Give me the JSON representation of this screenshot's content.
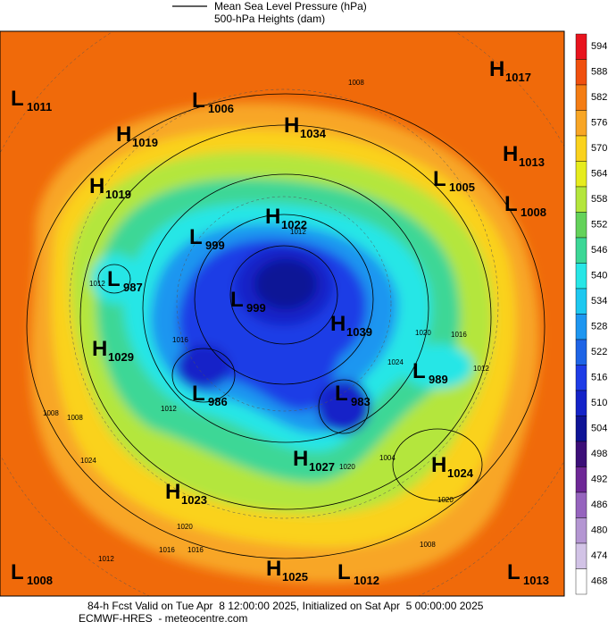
{
  "legend": {
    "line_label": "Mean Sea Level Pressure (hPa)",
    "fill_label": "500-hPa Heights (dam)"
  },
  "colorbar": {
    "ticks": [
      594,
      588,
      582,
      576,
      570,
      564,
      558,
      552,
      546,
      540,
      534,
      528,
      522,
      516,
      510,
      504,
      498,
      492,
      486,
      480,
      474,
      468
    ],
    "colors": [
      "#e8141e",
      "#f0500f",
      "#f47d14",
      "#f8a626",
      "#fad21e",
      "#e6ec1e",
      "#b4e63c",
      "#64d25a",
      "#3cd796",
      "#28e6e6",
      "#1ec8f0",
      "#1e96f0",
      "#1e64e6",
      "#1e3ce6",
      "#1423c8",
      "#0f1496",
      "#3c0f78",
      "#6e2896",
      "#9664be",
      "#b496d2",
      "#d2c3e6",
      "#ffffff"
    ]
  },
  "centers": [
    {
      "kind": "L",
      "value": 1011
    },
    {
      "kind": "L",
      "value": 1006
    },
    {
      "kind": "H",
      "value": 1034
    },
    {
      "kind": "H",
      "value": 1017
    },
    {
      "kind": "H",
      "value": 1019
    },
    {
      "kind": "H",
      "value": 1013
    },
    {
      "kind": "H",
      "value": 1019
    },
    {
      "kind": "L",
      "value": 1005
    },
    {
      "kind": "L",
      "value": 1008
    },
    {
      "kind": "H",
      "value": 1022
    },
    {
      "kind": "L",
      "value": 999
    },
    {
      "kind": "L",
      "value": 987
    },
    {
      "kind": "L",
      "value": 999
    },
    {
      "kind": "H",
      "value": 1039
    },
    {
      "kind": "H",
      "value": 1029
    },
    {
      "kind": "L",
      "value": 989
    },
    {
      "kind": "L",
      "value": 986
    },
    {
      "kind": "L",
      "value": 983
    },
    {
      "kind": "H",
      "value": 1027
    },
    {
      "kind": "H",
      "value": 1024
    },
    {
      "kind": "H",
      "value": 1023
    },
    {
      "kind": "L",
      "value": 1008
    },
    {
      "kind": "H",
      "value": 1025
    },
    {
      "kind": "L",
      "value": 1012
    },
    {
      "kind": "L",
      "value": 1013
    }
  ],
  "isobar_labels": [
    1008,
    1012,
    1016,
    1012,
    1020,
    1016,
    1024,
    1012,
    1008,
    1020,
    1024,
    1012,
    1004,
    1020,
    1008,
    1020,
    1016,
    1012,
    1016,
    1008
  ],
  "footer": {
    "line1": "84-h Fcst Valid on Tue Apr  8 12:00:00 2025, Initialized on Sat Apr  5 00:00:00 2025",
    "line2": "ECMWF-HRES  - meteocentre.com"
  }
}
